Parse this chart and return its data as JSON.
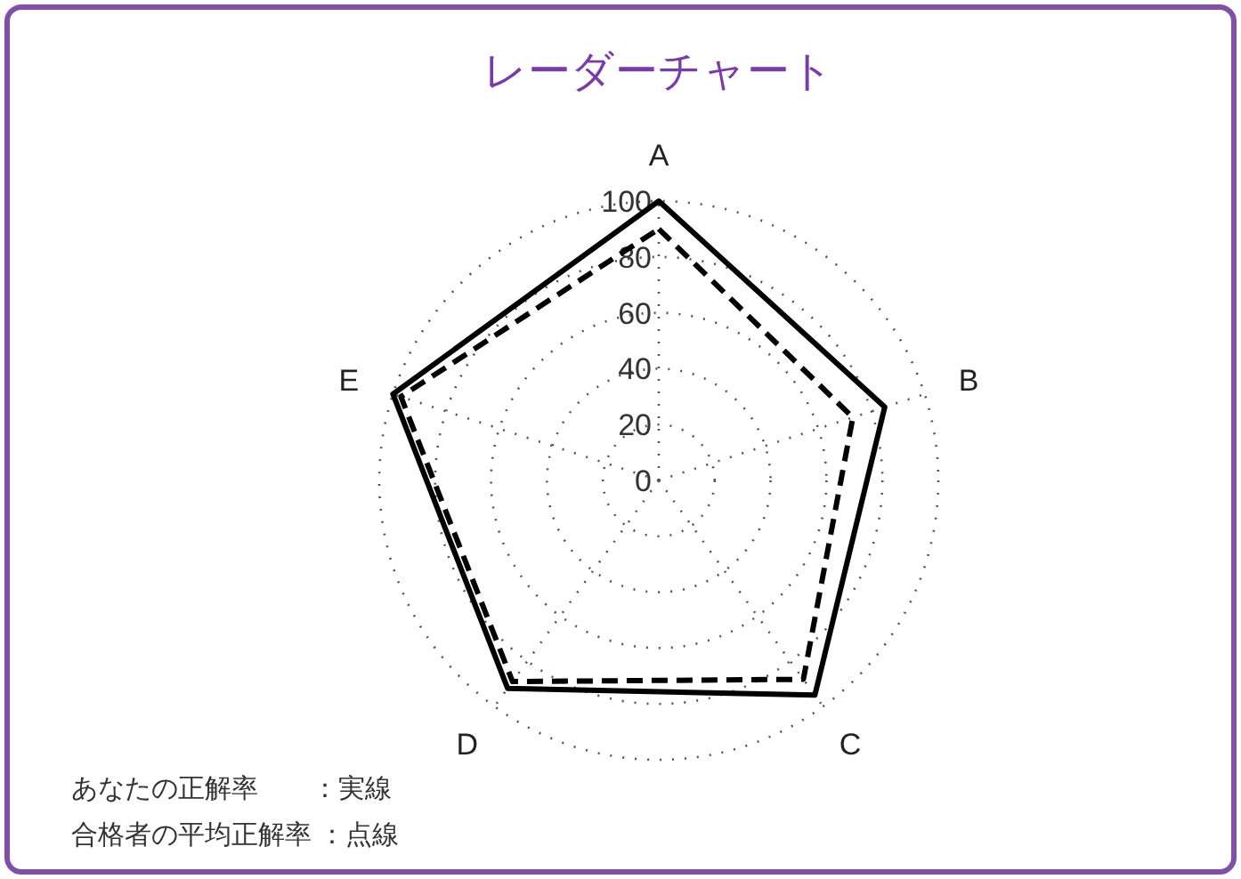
{
  "chart_data": {
    "type": "radar",
    "title": "レーダーチャート",
    "categories": [
      "A",
      "B",
      "C",
      "D",
      "E"
    ],
    "ylim": [
      0,
      100
    ],
    "yticks": [
      0,
      20,
      40,
      60,
      80,
      100
    ],
    "grid": true,
    "series": [
      {
        "color": "#000000",
        "line_style": "solid",
        "values": [
          100,
          85,
          95,
          92,
          100
        ]
      },
      {
        "color": "#000000",
        "line_style": "dashed",
        "values": [
          90,
          73,
          88,
          89,
          97
        ]
      }
    ],
    "annotations": [
      "あなたの正解率　　：実線",
      "合格者の平均正解率 ：点線"
    ]
  }
}
